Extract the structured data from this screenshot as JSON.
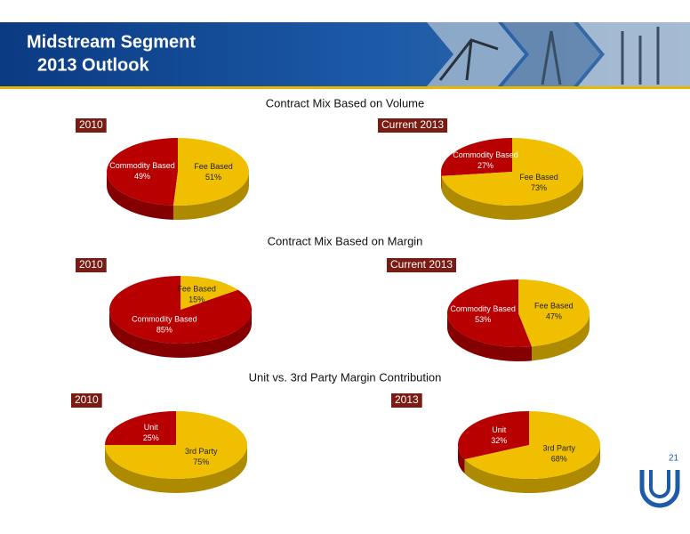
{
  "header": {
    "title_lines": [
      "Midstream Segment",
      "2013 Outlook"
    ]
  },
  "sections": [
    "Contract Mix Based on Volume",
    "Contract Mix Based on Margin",
    "Unit vs. 3rd Party Margin Contribution"
  ],
  "page_number": "21",
  "chart_data": [
    {
      "type": "pie",
      "title": "2010",
      "categories": [
        "Commodity Based",
        "Fee Based"
      ],
      "values": [
        49,
        51
      ],
      "value_labels": [
        "49%",
        "51%"
      ],
      "colors": [
        "#b80000",
        "#f0c000"
      ]
    },
    {
      "type": "pie",
      "title": "Current 2013",
      "categories": [
        "Commodity Based",
        "Fee Based"
      ],
      "values": [
        27,
        73
      ],
      "value_labels": [
        "27%",
        "73%"
      ],
      "colors": [
        "#b80000",
        "#f0c000"
      ]
    },
    {
      "type": "pie",
      "title": "2010",
      "categories": [
        "Commodity Based",
        "Fee Based"
      ],
      "values": [
        85,
        15
      ],
      "value_labels": [
        "85%",
        "15%"
      ],
      "colors": [
        "#b80000",
        "#f0c000"
      ]
    },
    {
      "type": "pie",
      "title": "Current 2013",
      "categories": [
        "Commodity Based",
        "Fee Based"
      ],
      "values": [
        53,
        47
      ],
      "value_labels": [
        "53%",
        "47%"
      ],
      "colors": [
        "#b80000",
        "#f0c000"
      ]
    },
    {
      "type": "pie",
      "title": "2010",
      "categories": [
        "Unit",
        "3rd Party"
      ],
      "values": [
        25,
        75
      ],
      "value_labels": [
        "25%",
        "75%"
      ],
      "colors": [
        "#b80000",
        "#f0c000"
      ]
    },
    {
      "type": "pie",
      "title": "2013",
      "categories": [
        "Unit",
        "3rd Party"
      ],
      "values": [
        32,
        68
      ],
      "value_labels": [
        "32%",
        "68%"
      ],
      "colors": [
        "#b80000",
        "#f0c000"
      ]
    }
  ]
}
